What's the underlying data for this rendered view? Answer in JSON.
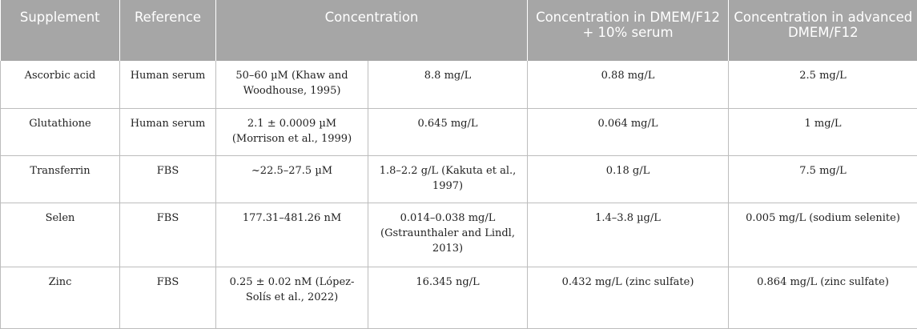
{
  "header": {
    "supplement": "Supplement",
    "reference": "Reference",
    "concentration": "Concentration",
    "conc_dmem": "Concentration in DMEM/F12 + 10% serum",
    "conc_adv": "Concentration in advanced DMEM/F12"
  },
  "rows": [
    {
      "supplement": "Ascorbic acid",
      "reference": "Human serum",
      "conc_molar": "50–60 µM (Khaw and Woodhouse, 1995)",
      "conc_mass": "8.8 mg/L",
      "conc_dmem": "0.88 mg/L",
      "conc_adv": "2.5 mg/L"
    },
    {
      "supplement": "Glutathione",
      "reference": "Human serum",
      "conc_molar": "2.1 ± 0.0009 µM (Morrison et al., 1999)",
      "conc_mass": "0.645 mg/L",
      "conc_dmem": "0.064 mg/L",
      "conc_adv": "1 mg/L"
    },
    {
      "supplement": "Transferrin",
      "reference": "FBS",
      "conc_molar": "~22.5–27.5 µM",
      "conc_mass": "1.8–2.2 g/L (Kakuta et al., 1997)",
      "conc_dmem": "0.18 g/L",
      "conc_adv": "7.5 mg/L"
    },
    {
      "supplement": "Selen",
      "reference": "FBS",
      "conc_molar": "177.31–481.26 nM",
      "conc_mass": "0.014–0.038 mg/L (Gstraunthaler and Lindl, 2013)",
      "conc_dmem": "1.4–3.8 µg/L",
      "conc_adv": "0.005 mg/L (sodium selenite)"
    },
    {
      "supplement": "Zinc",
      "reference": "FBS",
      "conc_molar": "0.25 ± 0.02 nM (López-Solís et al., 2022)",
      "conc_mass": "16.345 ng/L",
      "conc_dmem": "0.432 mg/L (zinc sulfate)",
      "conc_adv": "0.864 mg/L (zinc sulfate)"
    }
  ]
}
